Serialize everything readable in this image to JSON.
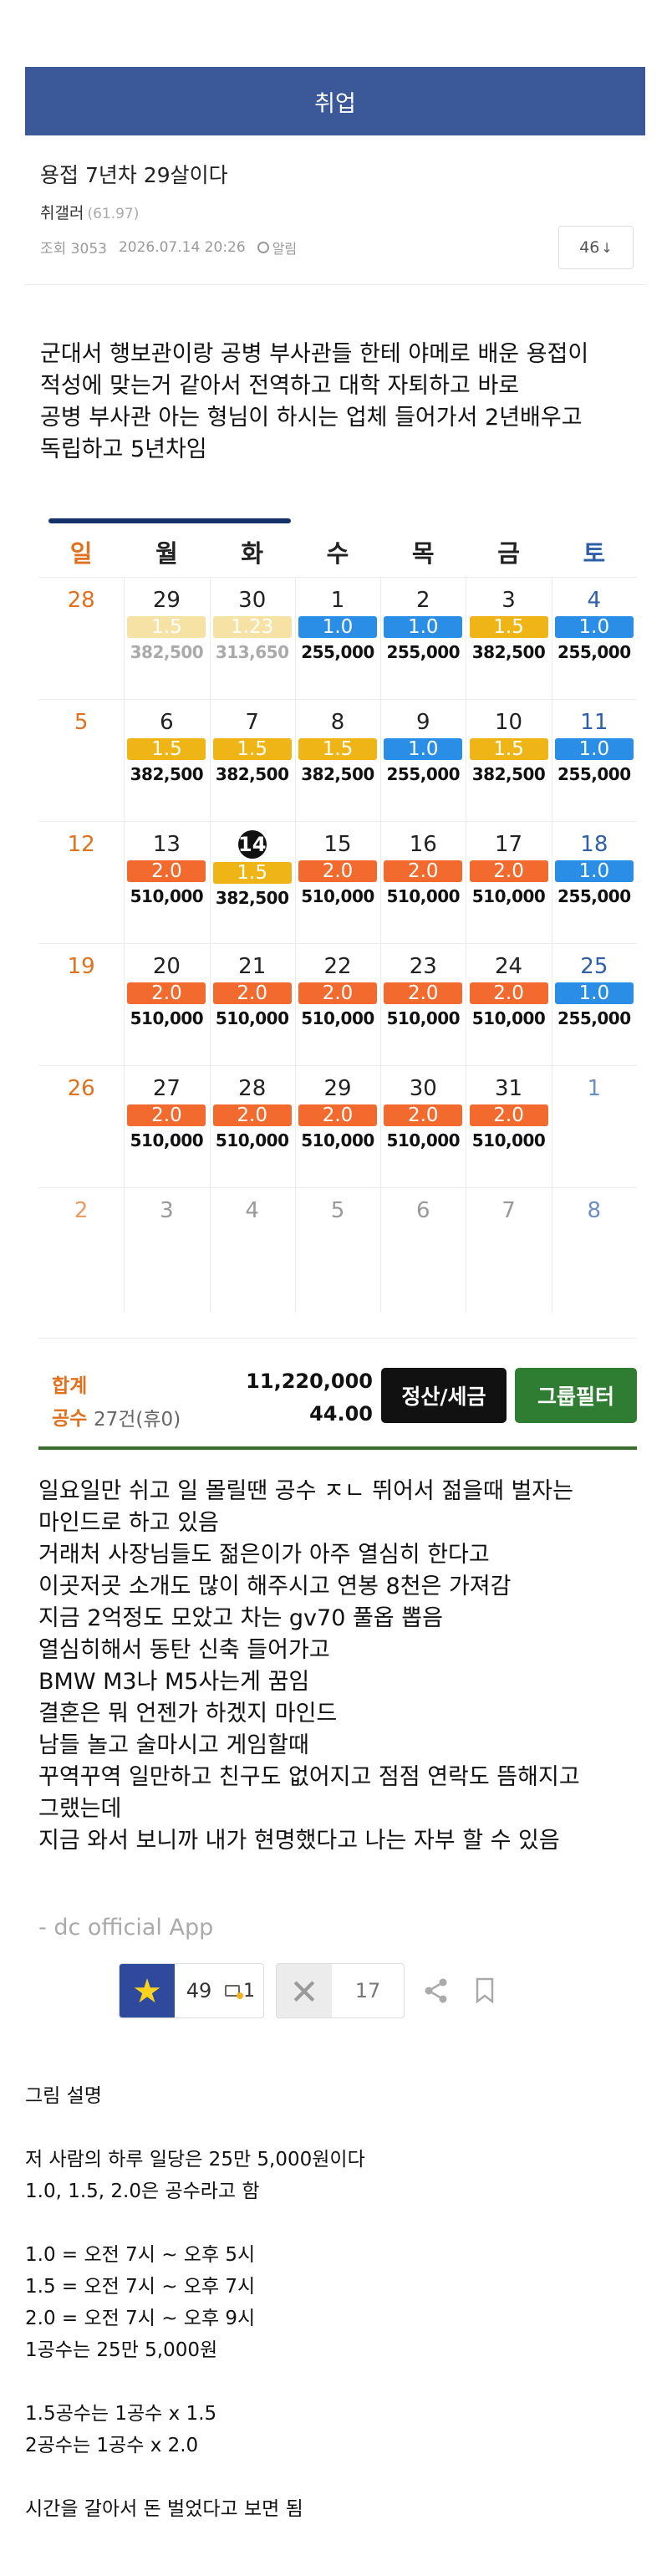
{
  "board": {
    "title": "취업"
  },
  "post": {
    "title": "용접 7년차 29살이다",
    "author": "취갤러",
    "author_score": "(61.97)",
    "views": "조회 3053",
    "datetime": "2026.07.14 20:26",
    "alarm_label": "알림",
    "comment_count": "46",
    "comment_arrow": "↓"
  },
  "intro_lines": [
    "군대서 행보관이랑 공병 부사관들 한테 야메로 배운 용접이",
    "적성에 맞는거 같아서 전역하고 대학 자퇴하고 바로",
    "공병 부사관 아는 형님이 하시는 업체 들어가서 2년배우고",
    "독립하고 5년차임"
  ],
  "calendar": {
    "weekdays": [
      "일",
      "월",
      "화",
      "수",
      "목",
      "금",
      "토"
    ],
    "today": "14",
    "badge_colors": {
      "1.0": "#2a8ee6",
      "1.5": "#efb416",
      "2.0": "#f26a2e",
      "faded": "#f7e2a6"
    },
    "weeks": [
      [
        {
          "d": "28"
        },
        {
          "d": "29",
          "g": "1.5",
          "a": "382,500",
          "faded": true
        },
        {
          "d": "30",
          "g": "1.23",
          "a": "313,650",
          "faded": true
        },
        {
          "d": "1",
          "g": "1.0",
          "a": "255,000"
        },
        {
          "d": "2",
          "g": "1.0",
          "a": "255,000"
        },
        {
          "d": "3",
          "g": "1.5",
          "a": "382,500"
        },
        {
          "d": "4",
          "g": "1.0",
          "a": "255,000"
        }
      ],
      [
        {
          "d": "5"
        },
        {
          "d": "6",
          "g": "1.5",
          "a": "382,500"
        },
        {
          "d": "7",
          "g": "1.5",
          "a": "382,500"
        },
        {
          "d": "8",
          "g": "1.5",
          "a": "382,500"
        },
        {
          "d": "9",
          "g": "1.0",
          "a": "255,000"
        },
        {
          "d": "10",
          "g": "1.5",
          "a": "382,500"
        },
        {
          "d": "11",
          "g": "1.0",
          "a": "255,000"
        }
      ],
      [
        {
          "d": "12"
        },
        {
          "d": "13",
          "g": "2.0",
          "a": "510,000"
        },
        {
          "d": "14",
          "g": "1.5",
          "a": "382,500"
        },
        {
          "d": "15",
          "g": "2.0",
          "a": "510,000"
        },
        {
          "d": "16",
          "g": "2.0",
          "a": "510,000"
        },
        {
          "d": "17",
          "g": "2.0",
          "a": "510,000"
        },
        {
          "d": "18",
          "g": "1.0",
          "a": "255,000"
        }
      ],
      [
        {
          "d": "19"
        },
        {
          "d": "20",
          "g": "2.0",
          "a": "510,000"
        },
        {
          "d": "21",
          "g": "2.0",
          "a": "510,000"
        },
        {
          "d": "22",
          "g": "2.0",
          "a": "510,000"
        },
        {
          "d": "23",
          "g": "2.0",
          "a": "510,000"
        },
        {
          "d": "24",
          "g": "2.0",
          "a": "510,000"
        },
        {
          "d": "25",
          "g": "1.0",
          "a": "255,000"
        }
      ],
      [
        {
          "d": "26"
        },
        {
          "d": "27",
          "g": "2.0",
          "a": "510,000"
        },
        {
          "d": "28",
          "g": "2.0",
          "a": "510,000"
        },
        {
          "d": "29",
          "g": "2.0",
          "a": "510,000"
        },
        {
          "d": "30",
          "g": "2.0",
          "a": "510,000"
        },
        {
          "d": "31",
          "g": "2.0",
          "a": "510,000"
        },
        {
          "d": "1",
          "muted": true
        }
      ],
      [
        {
          "d": "2",
          "muted": true
        },
        {
          "d": "3",
          "muted": true
        },
        {
          "d": "4",
          "muted": true
        },
        {
          "d": "5",
          "muted": true
        },
        {
          "d": "6",
          "muted": true
        },
        {
          "d": "7",
          "muted": true
        },
        {
          "d": "8",
          "muted": true
        }
      ]
    ]
  },
  "summary": {
    "total_label": "합계",
    "gongsu_label": "공수",
    "count_text": "27건(휴0)",
    "total_value": "11,220,000",
    "gongsu_value": "44.00",
    "settle_button": "정산/세금",
    "group_filter_button": "그룹필터"
  },
  "body_lines": [
    "일요일만 쉬고 일 몰릴땐 공수 ㅈㄴ 뛰어서 젊을때 벌자는",
    "마인드로 하고 있음",
    "거래처 사장님들도 젊은이가 아주 열심히 한다고",
    "이곳저곳 소개도 많이 해주시고  연봉 8천은 가져감",
    "지금 2억정도 모았고 차는 gv70 풀옵 뽑음",
    "열심히해서 동탄 신축 들어가고",
    "BMW M3나 M5사는게 꿈임",
    "결혼은 뭐 언젠가 하겠지 마인드",
    "남들 놀고 술마시고 게임할때",
    "꾸역꾸역 일만하고 친구도 없어지고 점점 연락도 뜸해지고",
    "그랬는데",
    "지금 와서 보니까 내가 현명했다고 나는 자부 할 수 있음"
  ],
  "footer": {
    "app_signature": "- dc official App",
    "recommend_count": "49",
    "fixed_recommend_count": "1",
    "nonrecommend_count": "17"
  },
  "explanation_lines": [
    "그림 설명",
    "",
    "저 사람의 하루 일당은 25만 5,000원이다",
    "1.0, 1.5, 2.0은 공수라고 함",
    "",
    "1.0 = 오전 7시 ~ 오후 5시",
    "1.5 = 오전 7시 ~ 오후 7시",
    "2.0 = 오전 7시 ~ 오후 9시",
    "1공수는 25만 5,000원",
    "",
    "1.5공수는 1공수 x 1.5",
    "2공수는 1공수 x 2.0",
    "",
    "시간을 갈아서 돈 벌었다고 보면 됨"
  ]
}
